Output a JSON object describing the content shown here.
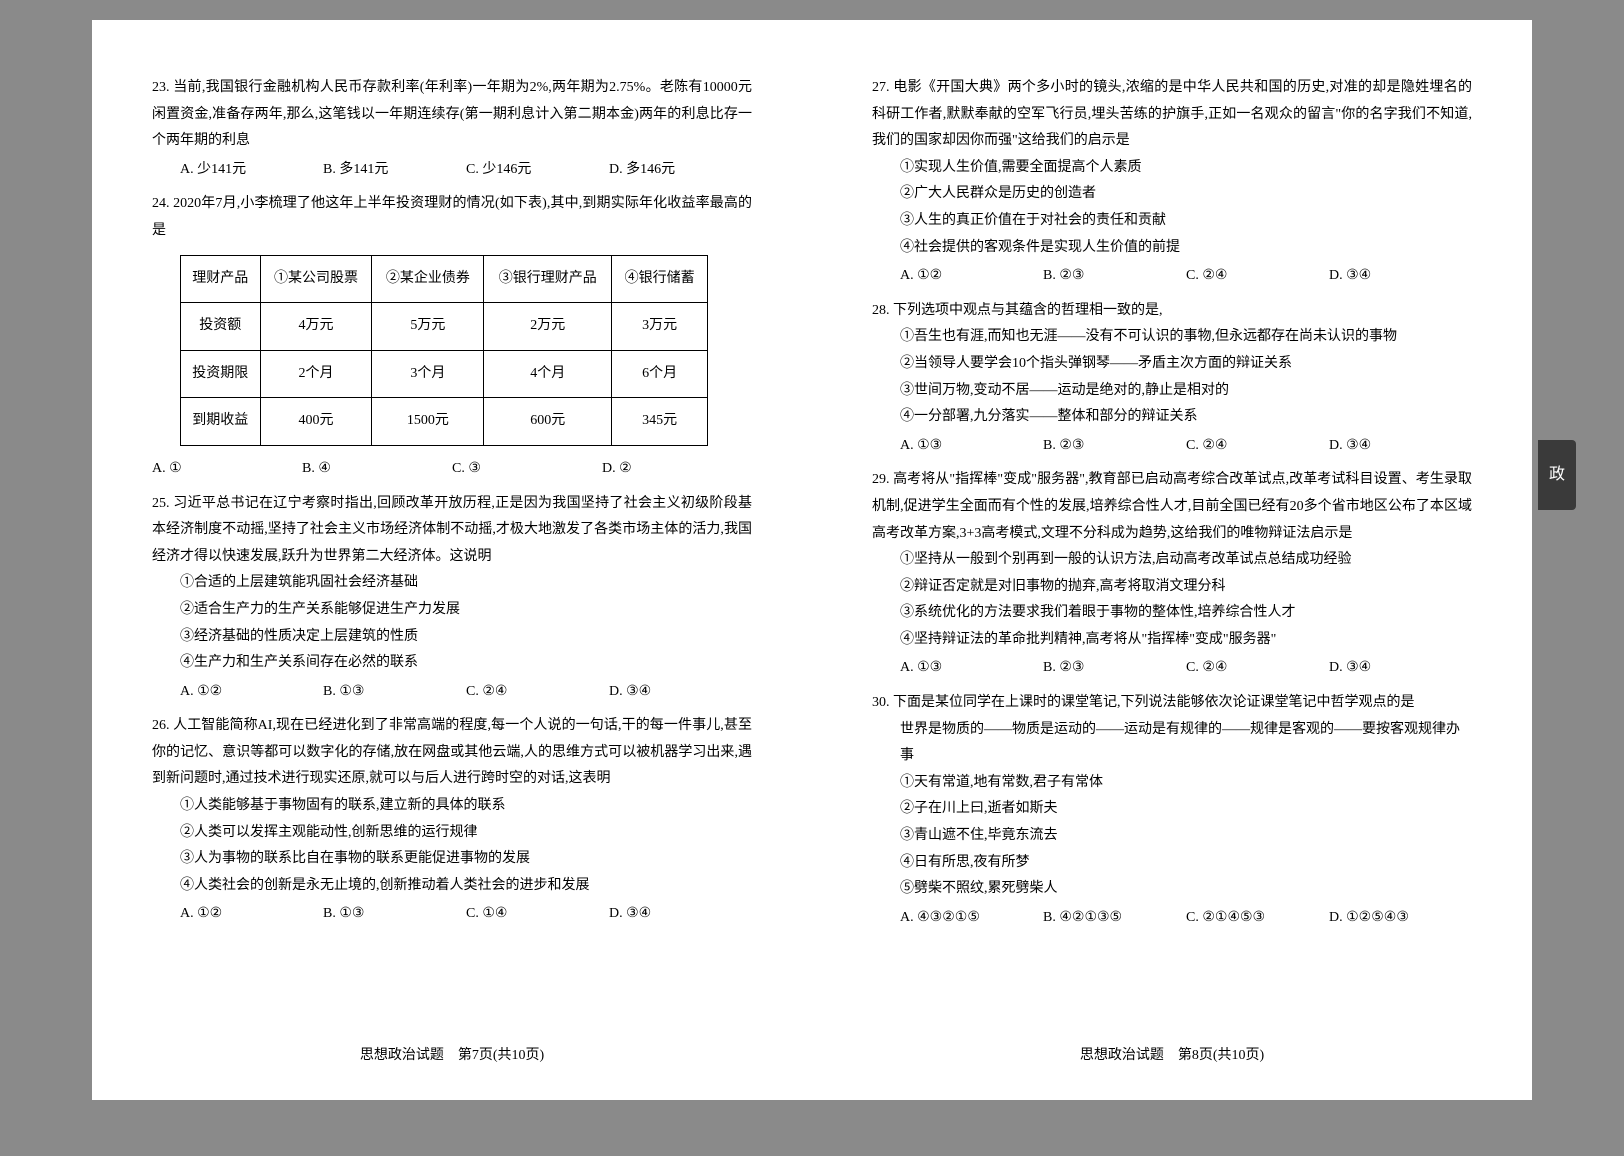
{
  "left": {
    "q23": {
      "text": "23. 当前,我国银行金融机构人民币存款利率(年利率)一年期为2%,两年期为2.75%。老陈有10000元闲置资金,准备存两年,那么,这笔钱以一年期连续存(第一期利息计入第二期本金)两年的利息比存一个两年期的利息",
      "opts": [
        "A. 少141元",
        "B. 多141元",
        "C. 少146元",
        "D. 多146元"
      ]
    },
    "q24": {
      "text": "24. 2020年7月,小李梳理了他这年上半年投资理财的情况(如下表),其中,到期实际年化收益率最高的是",
      "table": {
        "r1": [
          "理财产品",
          "①某公司股票",
          "②某企业债券",
          "③银行理财产品",
          "④银行储蓄"
        ],
        "r2": [
          "投资额",
          "4万元",
          "5万元",
          "2万元",
          "3万元"
        ],
        "r3": [
          "投资期限",
          "2个月",
          "3个月",
          "4个月",
          "6个月"
        ],
        "r4": [
          "到期收益",
          "400元",
          "1500元",
          "600元",
          "345元"
        ]
      },
      "opts": [
        "A. ①",
        "B. ④",
        "C. ③",
        "D. ②"
      ]
    },
    "q25": {
      "text": "25. 习近平总书记在辽宁考察时指出,回顾改革开放历程,正是因为我国坚持了社会主义初级阶段基本经济制度不动摇,坚持了社会主义市场经济体制不动摇,才极大地激发了各类市场主体的活力,我国经济才得以快速发展,跃升为世界第二大经济体。这说明",
      "items": [
        "①合适的上层建筑能巩固社会经济基础",
        "②适合生产力的生产关系能够促进生产力发展",
        "③经济基础的性质决定上层建筑的性质",
        "④生产力和生产关系间存在必然的联系"
      ],
      "opts": [
        "A. ①②",
        "B. ①③",
        "C. ②④",
        "D. ③④"
      ]
    },
    "q26": {
      "text": "26. 人工智能简称AI,现在已经进化到了非常高端的程度,每一个人说的一句话,干的每一件事儿,甚至你的记忆、意识等都可以数字化的存储,放在网盘或其他云端,人的思维方式可以被机器学习出来,遇到新问题时,通过技术进行现实还原,就可以与后人进行跨时空的对话,这表明",
      "items": [
        "①人类能够基于事物固有的联系,建立新的具体的联系",
        "②人类可以发挥主观能动性,创新思维的运行规律",
        "③人为事物的联系比自在事物的联系更能促进事物的发展",
        "④人类社会的创新是永无止境的,创新推动着人类社会的进步和发展"
      ],
      "opts": [
        "A. ①②",
        "B. ①③",
        "C. ①④",
        "D. ③④"
      ]
    },
    "footer": "思想政治试题　第7页(共10页)"
  },
  "right": {
    "q27": {
      "text": "27. 电影《开国大典》两个多小时的镜头,浓缩的是中华人民共和国的历史,对准的却是隐姓埋名的科研工作者,默默奉献的空军飞行员,埋头苦练的护旗手,正如一名观众的留言\"你的名字我们不知道,我们的国家却因你而强\"这给我们的启示是",
      "items": [
        "①实现人生价值,需要全面提高个人素质",
        "②广大人民群众是历史的创造者",
        "③人生的真正价值在于对社会的责任和贡献",
        "④社会提供的客观条件是实现人生价值的前提"
      ],
      "opts": [
        "A. ①②",
        "B. ②③",
        "C. ②④",
        "D. ③④"
      ]
    },
    "q28": {
      "text": "28. 下列选项中观点与其蕴含的哲理相一致的是,",
      "items": [
        "①吾生也有涯,而知也无涯——没有不可认识的事物,但永远都存在尚未认识的事物",
        "②当领导人要学会10个指头弹钢琴——矛盾主次方面的辩证关系",
        "③世间万物,变动不居——运动是绝对的,静止是相对的",
        "④一分部署,九分落实——整体和部分的辩证关系"
      ],
      "opts": [
        "A. ①③",
        "B. ②③",
        "C. ②④",
        "D. ③④"
      ]
    },
    "q29": {
      "text": "29. 高考将从\"指挥棒\"变成\"服务器\",教育部已启动高考综合改革试点,改革考试科目设置、考生录取机制,促进学生全面而有个性的发展,培养综合性人才,目前全国已经有20多个省市地区公布了本区域高考改革方案,3+3高考模式,文理不分科成为趋势,这给我们的唯物辩证法启示是",
      "items": [
        "①坚持从一般到个别再到一般的认识方法,启动高考改革试点总结成功经验",
        "②辩证否定就是对旧事物的抛弃,高考将取消文理分科",
        "③系统优化的方法要求我们着眼于事物的整体性,培养综合性人才",
        "④坚持辩证法的革命批判精神,高考将从\"指挥棒\"变成\"服务器\""
      ],
      "opts": [
        "A. ①③",
        "B. ②③",
        "C. ②④",
        "D. ③④"
      ]
    },
    "q30": {
      "text": "30. 下面是某位同学在上课时的课堂笔记,下列说法能够依次论证课堂笔记中哲学观点的是",
      "note": "世界是物质的——物质是运动的——运动是有规律的——规律是客观的——要按客观规律办事",
      "items": [
        "①天有常道,地有常数,君子有常体",
        "②子在川上曰,逝者如斯夫",
        "③青山遮不住,毕竟东流去",
        "④日有所思,夜有所梦",
        "⑤劈柴不照纹,累死劈柴人"
      ],
      "opts": [
        "A. ④③②①⑤",
        "B. ④②①③⑤",
        "C. ②①④⑤③",
        "D. ①②⑤④③"
      ]
    },
    "footer": "思想政治试题　第8页(共10页)",
    "tab": "政"
  }
}
